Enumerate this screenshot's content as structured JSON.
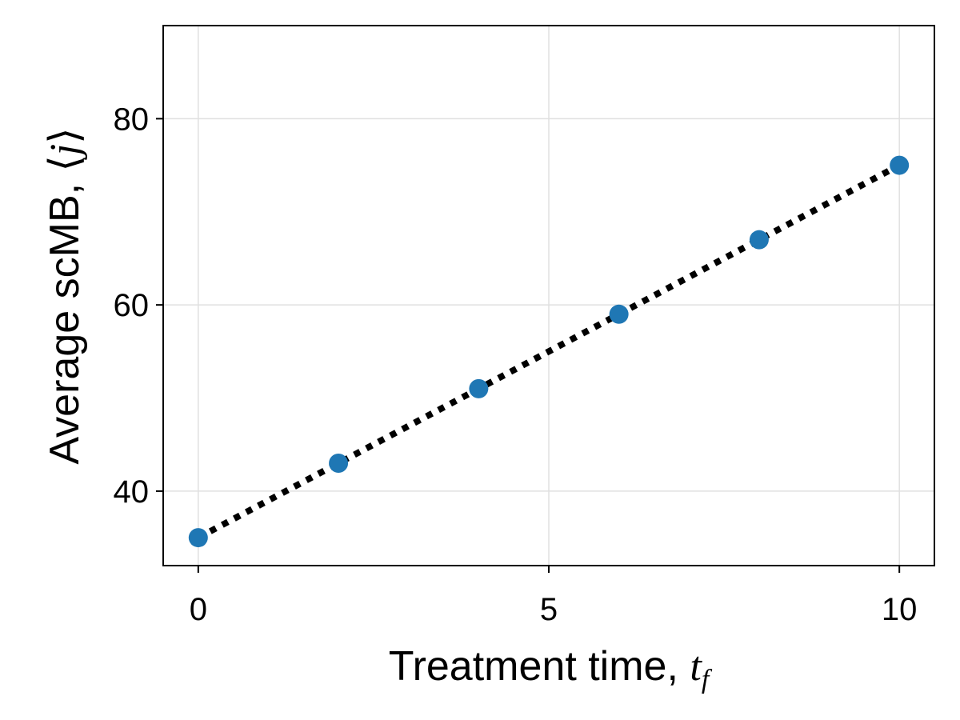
{
  "chart_data": {
    "type": "scatter",
    "title": "",
    "xlabel": "Treatment time, ",
    "xlabel_math": "t",
    "xlabel_math_sub": "f",
    "ylabel": "Average scMB, ",
    "ylabel_math_open": "⟨",
    "ylabel_math": "j",
    "ylabel_math_close": "⟩",
    "xlim": [
      -0.5,
      10.5
    ],
    "ylim": [
      32,
      90
    ],
    "x_ticks": [
      0,
      5,
      10
    ],
    "y_ticks": [
      40,
      60,
      80
    ],
    "x_tick_labels": [
      "0",
      "5",
      "10"
    ],
    "y_tick_labels": [
      "40",
      "60",
      "80"
    ],
    "grid": true,
    "series": [
      {
        "kind": "scatter",
        "color": "#1f77b4",
        "x": [
          0,
          2,
          4,
          6,
          8,
          10
        ],
        "y": [
          35,
          43,
          51,
          59,
          67,
          75
        ]
      },
      {
        "kind": "line",
        "style": "dotted",
        "color": "#000000",
        "x": [
          0,
          10
        ],
        "y": [
          35,
          75
        ]
      }
    ]
  }
}
